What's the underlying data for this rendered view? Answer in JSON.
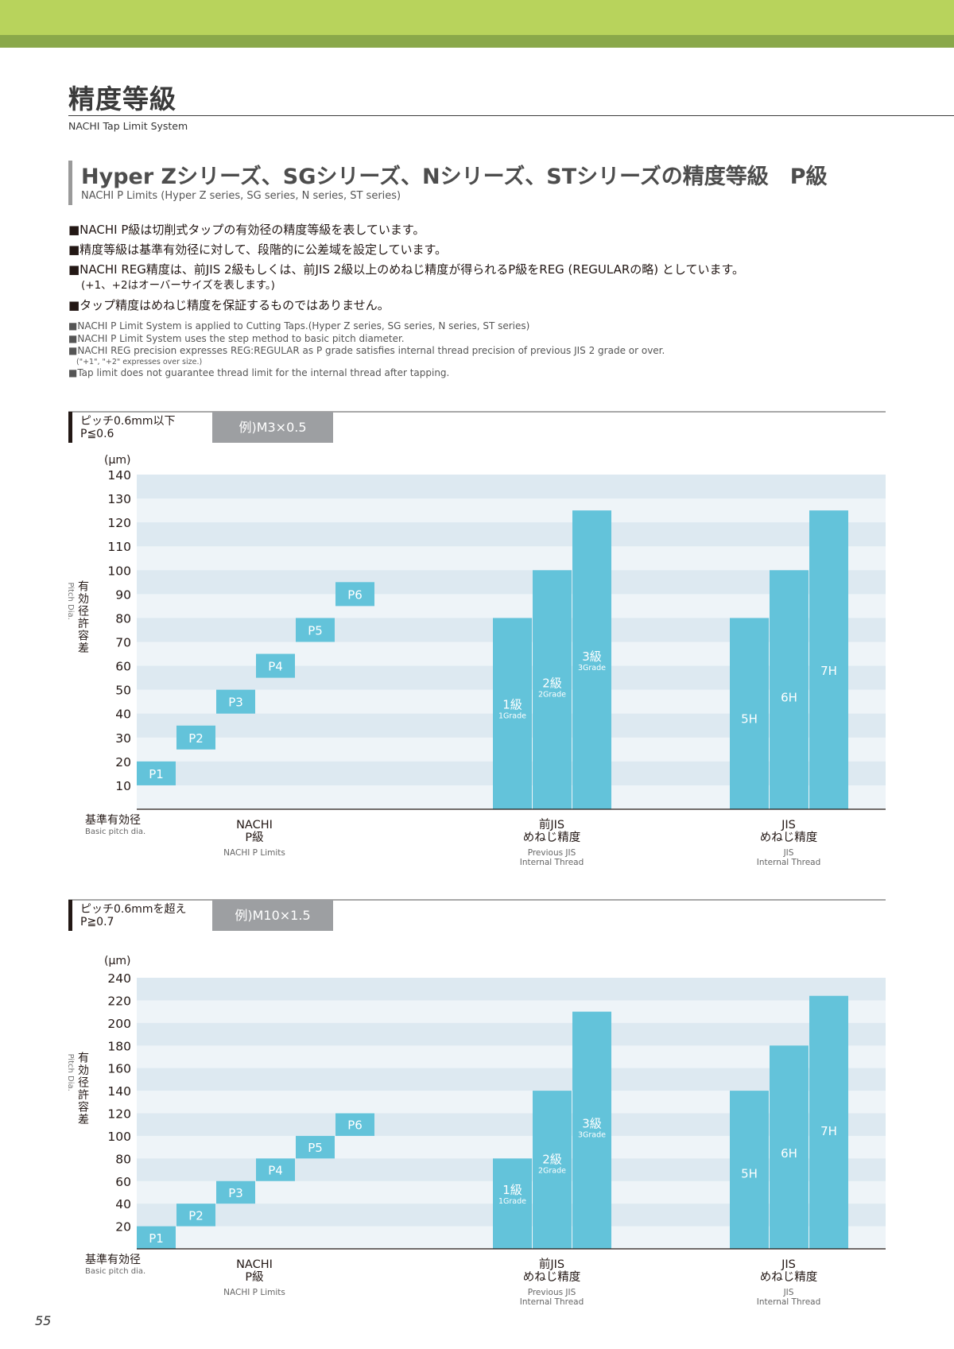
{
  "page": {
    "title": "精度等級",
    "subtitle": "NACHI Tap Limit System",
    "page_number": "55"
  },
  "section": {
    "title": "Hyper Zシリーズ、SGシリーズ、Nシリーズ、STシリーズの精度等級　P級",
    "subtitle": "NACHI P Limits (Hyper Z series, SG series, N series, ST series)"
  },
  "notes_jp": [
    "■NACHI P級は切削式タップの有効径の精度等級を表しています。",
    "■精度等級は基準有効径に対して、段階的に公差域を設定しています。",
    "■NACHI REG精度は、前JIS 2級もしくは、前JIS 2級以上のめねじ精度が得られるP級をREG (REGULARの略) としています。",
    "(+1、+2はオーバーサイズを表します。)",
    "■タップ精度はめねじ精度を保証するものではありません。"
  ],
  "notes_en": [
    "■NACHI P Limit System is applied to Cutting Taps.(Hyper Z series, SG series, N series, ST series)",
    "■NACHI P Limit System uses the step method to basic pitch diameter.",
    "■NACHI REG precision expresses REG:REGULAR as P grade satisfies internal thread precision of previous JIS 2 grade or over.",
    "(\"+1\", \"+2\" expresses over size.)",
    "■Tap limit does not guarantee thread limit for the internal thread after tapping."
  ],
  "colors": {
    "bar": "#63c3da",
    "band_dark": "#dde9f1",
    "band_light": "#eef4f8",
    "accent_green": "#b8d35c",
    "header_gray": "#9d9fa2"
  },
  "chart_data": [
    {
      "type": "bar",
      "header": {
        "pitch_jp": "ピッチ0.6mm以下",
        "pitch_en": "P≦0.6",
        "example": "例)M3×0.5"
      },
      "unit_label": "(μm)",
      "ylabel_jp": "有効径許容差",
      "ylabel_en": "Pitch Dia.",
      "ylim": [
        0,
        140
      ],
      "yticks": [
        10,
        20,
        30,
        40,
        50,
        60,
        70,
        80,
        90,
        100,
        110,
        120,
        130,
        140
      ],
      "base_label": {
        "jp": "基準有効径",
        "en": "Basic pitch dia."
      },
      "groups": [
        {
          "name_jp_line1": "NACHI",
          "name_jp_line2": "P級",
          "name_en_line1": "NACHI P Limits",
          "name_en_line2": "",
          "style": "step",
          "bars": [
            {
              "label": "P1",
              "sub": "",
              "low": 10,
              "high": 20
            },
            {
              "label": "P2",
              "sub": "",
              "low": 25,
              "high": 35
            },
            {
              "label": "P3",
              "sub": "",
              "low": 40,
              "high": 50
            },
            {
              "label": "P4",
              "sub": "",
              "low": 55,
              "high": 65
            },
            {
              "label": "P5",
              "sub": "",
              "low": 70,
              "high": 80
            },
            {
              "label": "P6",
              "sub": "",
              "low": 85,
              "high": 95
            }
          ]
        },
        {
          "name_jp_line1": "前JIS",
          "name_jp_line2": "めねじ精度",
          "name_en_line1": "Previous JIS",
          "name_en_line2": "Internal Thread",
          "style": "column",
          "bars": [
            {
              "label": "1級",
              "sub": "1Grade",
              "low": 0,
              "high": 80
            },
            {
              "label": "2級",
              "sub": "2Grade",
              "low": 0,
              "high": 100
            },
            {
              "label": "3級",
              "sub": "3Grade",
              "low": 0,
              "high": 125
            }
          ]
        },
        {
          "name_jp_line1": "JIS",
          "name_jp_line2": "めねじ精度",
          "name_en_line1": "JIS",
          "name_en_line2": "Internal Thread",
          "style": "column",
          "bars": [
            {
              "label": "5H",
              "sub": "",
              "low": 0,
              "high": 80
            },
            {
              "label": "6H",
              "sub": "",
              "low": 0,
              "high": 100
            },
            {
              "label": "7H",
              "sub": "",
              "low": 0,
              "high": 125
            }
          ]
        }
      ]
    },
    {
      "type": "bar",
      "header": {
        "pitch_jp": "ピッチ0.6mmを超え",
        "pitch_en": "P≧0.7",
        "example": "例)M10×1.5"
      },
      "unit_label": "(μm)",
      "ylabel_jp": "有効径許容差",
      "ylabel_en": "Pitch Dia.",
      "ylim": [
        0,
        240
      ],
      "yticks": [
        20,
        40,
        60,
        80,
        100,
        120,
        140,
        160,
        180,
        200,
        220,
        240
      ],
      "base_label": {
        "jp": "基準有効径",
        "en": "Basic pitch dia."
      },
      "groups": [
        {
          "name_jp_line1": "NACHI",
          "name_jp_line2": "P級",
          "name_en_line1": "NACHI P Limits",
          "name_en_line2": "",
          "style": "step",
          "bars": [
            {
              "label": "P1",
              "sub": "",
              "low": 0,
              "high": 20
            },
            {
              "label": "P2",
              "sub": "",
              "low": 20,
              "high": 40
            },
            {
              "label": "P3",
              "sub": "",
              "low": 40,
              "high": 60
            },
            {
              "label": "P4",
              "sub": "",
              "low": 60,
              "high": 80
            },
            {
              "label": "P5",
              "sub": "",
              "low": 80,
              "high": 100
            },
            {
              "label": "P6",
              "sub": "",
              "low": 100,
              "high": 120
            }
          ]
        },
        {
          "name_jp_line1": "前JIS",
          "name_jp_line2": "めねじ精度",
          "name_en_line1": "Previous JIS",
          "name_en_line2": "Internal Thread",
          "style": "column",
          "bars": [
            {
              "label": "1級",
              "sub": "1Grade",
              "low": 0,
              "high": 80
            },
            {
              "label": "2級",
              "sub": "2Grade",
              "low": 0,
              "high": 140
            },
            {
              "label": "3級",
              "sub": "3Grade",
              "low": 0,
              "high": 210
            }
          ]
        },
        {
          "name_jp_line1": "JIS",
          "name_jp_line2": "めねじ精度",
          "name_en_line1": "JIS",
          "name_en_line2": "Internal Thread",
          "style": "column",
          "bars": [
            {
              "label": "5H",
              "sub": "",
              "low": 0,
              "high": 140
            },
            {
              "label": "6H",
              "sub": "",
              "low": 0,
              "high": 180
            },
            {
              "label": "7H",
              "sub": "",
              "low": 0,
              "high": 224
            }
          ]
        }
      ]
    }
  ]
}
